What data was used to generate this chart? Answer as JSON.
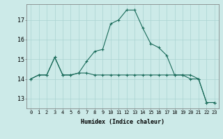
{
  "xlabel": "Humidex (Indice chaleur)",
  "background_color": "#cceae8",
  "grid_color": "#aad4d2",
  "line_color": "#1a6b5a",
  "marker": "+",
  "series1_x": [
    0,
    1,
    2,
    3,
    4,
    5,
    6,
    7,
    8,
    9,
    10,
    11,
    12,
    13,
    14,
    15,
    16,
    17,
    18,
    19,
    20,
    21,
    22,
    23
  ],
  "series1_y": [
    14.0,
    14.2,
    14.2,
    15.1,
    14.2,
    14.2,
    14.3,
    14.3,
    14.2,
    14.2,
    14.2,
    14.2,
    14.2,
    14.2,
    14.2,
    14.2,
    14.2,
    14.2,
    14.2,
    14.2,
    14.2,
    14.0,
    12.8,
    12.8
  ],
  "series2_x": [
    0,
    1,
    2,
    3,
    4,
    5,
    6,
    7,
    8,
    9,
    10,
    11,
    12,
    13,
    14,
    15,
    16,
    17,
    18,
    19,
    20,
    21,
    22,
    23
  ],
  "series2_y": [
    14.0,
    14.2,
    14.2,
    15.1,
    14.2,
    14.2,
    14.3,
    14.9,
    15.4,
    15.5,
    16.8,
    17.0,
    17.5,
    17.5,
    16.6,
    15.8,
    15.6,
    15.2,
    14.2,
    14.2,
    14.0,
    14.0,
    12.8,
    12.8
  ],
  "ylim": [
    12.5,
    17.8
  ],
  "xlim": [
    -0.5,
    23.5
  ],
  "yticks": [
    13,
    14,
    15,
    16,
    17
  ],
  "xticks": [
    0,
    1,
    2,
    3,
    4,
    5,
    6,
    7,
    8,
    9,
    10,
    11,
    12,
    13,
    14,
    15,
    16,
    17,
    18,
    19,
    20,
    21,
    22,
    23
  ],
  "tick_fontsize": 5,
  "xlabel_fontsize": 6,
  "linewidth": 0.8,
  "markersize": 3
}
